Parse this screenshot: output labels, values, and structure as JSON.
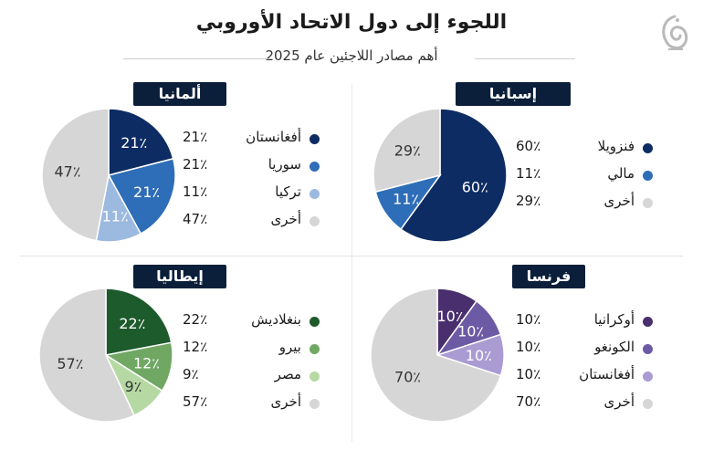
{
  "title": "اللجوء إلى دول الاتحاد الأوروبي",
  "subtitle": "أهم مصادر اللاجئين عام 2025",
  "chart_data": [
    {
      "type": "pie",
      "title": "ألمانيا",
      "categories": [
        "أفغانستان",
        "سوريا",
        "تركيا",
        "أخرى"
      ],
      "values": [
        21,
        21,
        11,
        47
      ],
      "value_labels": [
        "21٪",
        "21٪",
        "11٪",
        "47٪"
      ],
      "colors": [
        "#0d2c63",
        "#2e6db7",
        "#9cb9e0",
        "#d6d6d6"
      ],
      "label_colors": [
        "#ffffff",
        "#ffffff",
        "#ffffff",
        "#333333"
      ]
    },
    {
      "type": "pie",
      "title": "إسبانيا",
      "categories": [
        "فنزويلا",
        "مالي",
        "أخرى"
      ],
      "values": [
        60,
        11,
        29
      ],
      "value_labels": [
        "60٪",
        "11٪",
        "29٪"
      ],
      "colors": [
        "#0d2c63",
        "#2e6db7",
        "#d6d6d6"
      ],
      "label_colors": [
        "#ffffff",
        "#ffffff",
        "#333333"
      ]
    },
    {
      "type": "pie",
      "title": "إيطاليا",
      "categories": [
        "بنغلاديش",
        "بيرو",
        "مصر",
        "أخرى"
      ],
      "values": [
        22,
        12,
        9,
        57
      ],
      "value_labels": [
        "22٪",
        "12٪",
        "9٪",
        "57٪"
      ],
      "colors": [
        "#1d5a2c",
        "#6fa763",
        "#b6d9a3",
        "#d6d6d6"
      ],
      "label_colors": [
        "#ffffff",
        "#ffffff",
        "#333333",
        "#333333"
      ]
    },
    {
      "type": "pie",
      "title": "فرنسا",
      "categories": [
        "أوكرانيا",
        "الكونغو",
        "أفغانستان",
        "أخرى"
      ],
      "values": [
        10,
        10,
        10,
        70
      ],
      "value_labels": [
        "10٪",
        "10٪",
        "10٪",
        "70٪"
      ],
      "colors": [
        "#4a2f6e",
        "#6d5aa5",
        "#ab9bd3",
        "#d6d6d6"
      ],
      "label_colors": [
        "#ffffff",
        "#ffffff",
        "#ffffff",
        "#333333"
      ]
    }
  ]
}
